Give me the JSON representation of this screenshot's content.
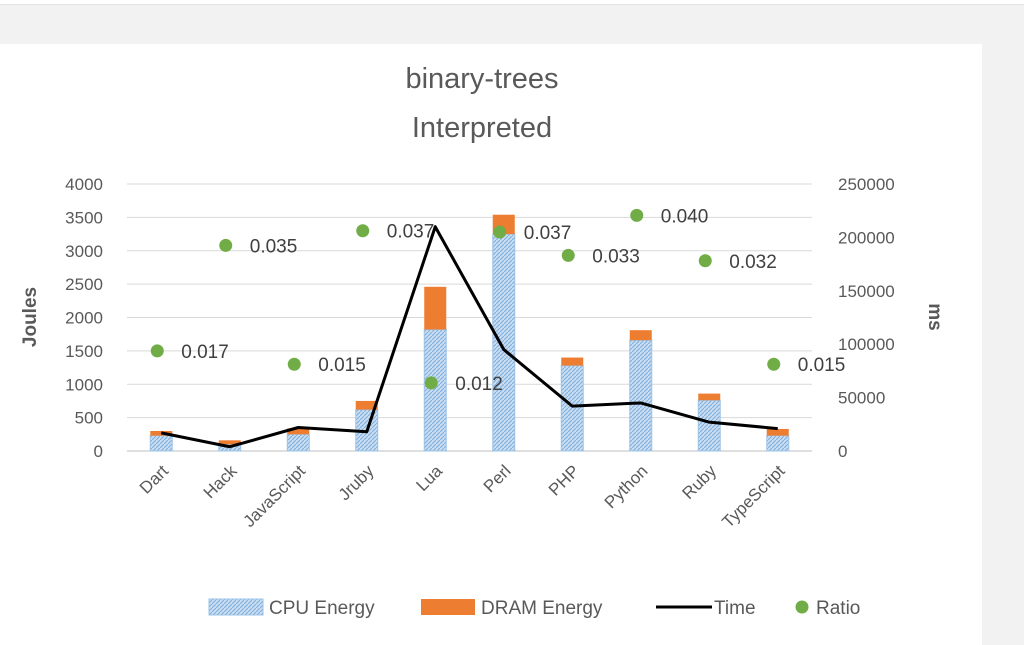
{
  "chart_data": {
    "type": "bar",
    "title": "binary-trees",
    "subtitle": "Interpreted",
    "ylabel": "Joules",
    "y2label": "ms",
    "ylim": [
      0,
      4000
    ],
    "y2lim": [
      0,
      250000
    ],
    "yticks": [
      "4000",
      "3500",
      "3000",
      "2500",
      "2000",
      "1500",
      "1000",
      "500",
      "0"
    ],
    "y2ticks": [
      "250000",
      "200000",
      "150000",
      "100000",
      "50000",
      "0"
    ],
    "categories": [
      "Dart",
      "Hack",
      "JavaScript",
      "Jruby",
      "Lua",
      "Perl",
      "PHP",
      "Python",
      "Ruby",
      "TypeScript"
    ],
    "series": [
      {
        "name": "CPU Energy",
        "kind": "stacked-bar",
        "color": "#9dc3e6",
        "values": [
          230,
          100,
          250,
          620,
          1820,
          3250,
          1280,
          1660,
          760,
          230
        ]
      },
      {
        "name": "DRAM Energy",
        "kind": "stacked-bar",
        "color": "#ed7d31",
        "values": [
          70,
          60,
          90,
          130,
          640,
          290,
          120,
          150,
          100,
          100
        ]
      },
      {
        "name": "Time",
        "kind": "line",
        "axis": "secondary",
        "color": "#000000",
        "values": [
          17000,
          4000,
          22000,
          18000,
          210000,
          95000,
          42000,
          45000,
          27000,
          21000
        ]
      },
      {
        "name": "Ratio",
        "kind": "scatter",
        "color": "#70ad47",
        "y_position_joules": [
          1500,
          3080,
          1300,
          3300,
          1020,
          3280,
          2930,
          3530,
          2850,
          1300
        ],
        "labels": [
          "0.017",
          "0.035",
          "0.015",
          "0.037",
          "0.012",
          "0.037",
          "0.033",
          "0.040",
          "0.032",
          "0.015"
        ]
      }
    ],
    "legend": "bottom",
    "grid": true
  }
}
